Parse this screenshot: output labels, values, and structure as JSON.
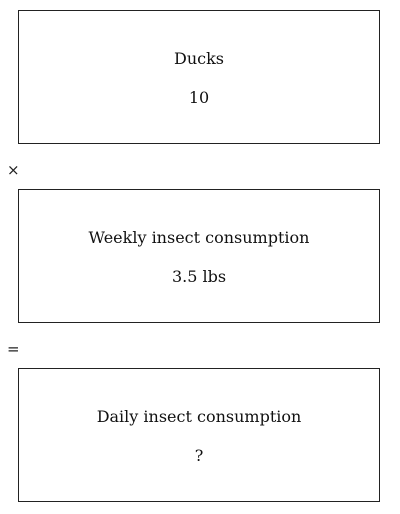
{
  "boxes": [
    {
      "title": "Ducks",
      "value": "10"
    },
    {
      "title": "Weekly insect consumption",
      "value": "3.5 lbs"
    },
    {
      "title": "Daily insect consumption",
      "value": "?"
    }
  ],
  "operators": {
    "first": "×",
    "second": "="
  }
}
